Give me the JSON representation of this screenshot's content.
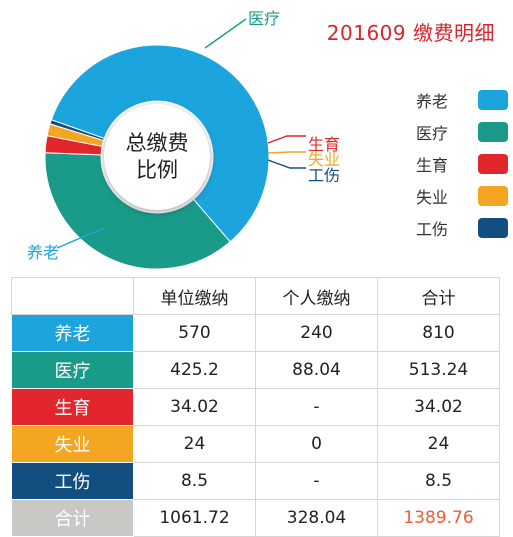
{
  "title": "201609 缴费明细",
  "center_text": "总缴费\n比例",
  "colors": {
    "yanglao": "#1ca4dd",
    "yiliao": "#1a9b8a",
    "shengyu": "#e1262d",
    "shiye": "#f4a622",
    "gongshang": "#124f80",
    "total_row": "#c9c8c4",
    "total_highlight": "#f15a33",
    "title": "#d9252c"
  },
  "pie_labels": {
    "yanglao": "养老",
    "yiliao": "医疗",
    "shengyu": "生育",
    "shiye": "失业",
    "gongshang": "工伤"
  },
  "legend": [
    {
      "label": "养老",
      "color": "#1ca4dd"
    },
    {
      "label": "医疗",
      "color": "#1a9b8a"
    },
    {
      "label": "生育",
      "color": "#e1262d"
    },
    {
      "label": "失业",
      "color": "#f4a622"
    },
    {
      "label": "工伤",
      "color": "#124f80"
    }
  ],
  "table": {
    "headers": [
      "",
      "单位缴纳",
      "个人缴纳",
      "合计"
    ],
    "rows": [
      {
        "label": "养老",
        "color": "#1ca4dd",
        "unit": "570",
        "personal": "240",
        "total": "810"
      },
      {
        "label": "医疗",
        "color": "#1a9b8a",
        "unit": "425.2",
        "personal": "88.04",
        "total": "513.24"
      },
      {
        "label": "生育",
        "color": "#e1262d",
        "unit": "34.02",
        "personal": "-",
        "total": "34.02"
      },
      {
        "label": "失业",
        "color": "#f4a622",
        "unit": "24",
        "personal": "0",
        "total": "24"
      },
      {
        "label": "工伤",
        "color": "#124f80",
        "unit": "8.5",
        "personal": "-",
        "total": "8.5"
      }
    ],
    "total_row": {
      "label": "合计",
      "unit": "1061.72",
      "personal": "328.04",
      "total": "1389.76"
    }
  },
  "chart_data": {
    "type": "pie",
    "title": "201609 缴费明细",
    "legend_position": "right",
    "categories": [
      "养老",
      "医疗",
      "生育",
      "失业",
      "工伤"
    ],
    "values": [
      810,
      513.24,
      34.02,
      24,
      8.5
    ],
    "colors": [
      "#1ca4dd",
      "#1a9b8a",
      "#e1262d",
      "#f4a622",
      "#124f80"
    ]
  }
}
